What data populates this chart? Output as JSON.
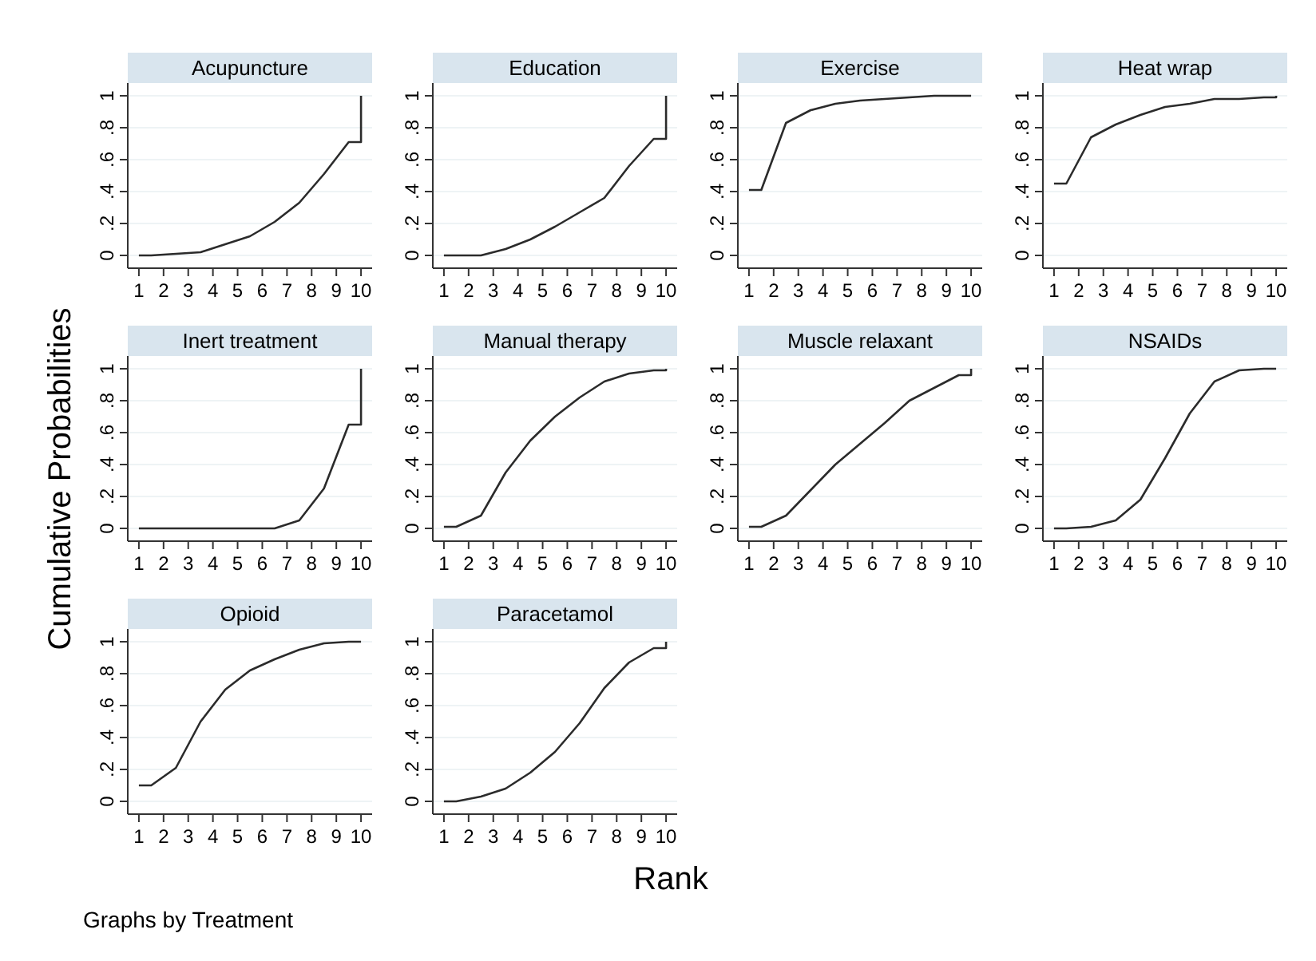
{
  "chart_data": [
    {
      "type": "line",
      "title": "Acupuncture",
      "x": [
        1,
        1.5,
        2.5,
        3.5,
        4.5,
        5.5,
        6.5,
        7.5,
        8.5,
        9.5,
        10,
        10
      ],
      "values": [
        0,
        0,
        0.01,
        0.02,
        0.07,
        0.12,
        0.21,
        0.33,
        0.51,
        0.71,
        0.71,
        1
      ],
      "color": "#2b2b2b",
      "xlim": [
        0.55,
        10.45
      ],
      "xticks": [
        1,
        2,
        3,
        4,
        5,
        6,
        7,
        8,
        9,
        10
      ],
      "ylim": [
        -0.08,
        1.08
      ],
      "yticks": [
        {
          "value": 0,
          "label": "0"
        },
        {
          "value": 0.2,
          "label": ".2"
        },
        {
          "value": 0.4,
          "label": ".4"
        },
        {
          "value": 0.6,
          "label": ".6"
        },
        {
          "value": 0.8,
          "label": ".8"
        },
        {
          "value": 1,
          "label": "1"
        }
      ],
      "grid": "y"
    },
    {
      "type": "line",
      "title": "Education",
      "x": [
        1,
        1.5,
        2.5,
        3.5,
        4.5,
        5.5,
        6.5,
        7.5,
        8.5,
        9.5,
        10,
        10
      ],
      "values": [
        0,
        0,
        0,
        0.04,
        0.1,
        0.18,
        0.27,
        0.36,
        0.56,
        0.73,
        0.73,
        1
      ],
      "color": "#2b2b2b",
      "xlim": [
        0.55,
        10.45
      ],
      "xticks": [
        1,
        2,
        3,
        4,
        5,
        6,
        7,
        8,
        9,
        10
      ],
      "ylim": [
        -0.08,
        1.08
      ],
      "yticks": [
        {
          "value": 0,
          "label": "0"
        },
        {
          "value": 0.2,
          "label": ".2"
        },
        {
          "value": 0.4,
          "label": ".4"
        },
        {
          "value": 0.6,
          "label": ".6"
        },
        {
          "value": 0.8,
          "label": ".8"
        },
        {
          "value": 1,
          "label": "1"
        }
      ],
      "grid": "y"
    },
    {
      "type": "line",
      "title": "Exercise",
      "x": [
        1,
        1.5,
        2.5,
        3.5,
        4.5,
        5.5,
        6.5,
        7.5,
        8.5,
        9.5,
        10,
        10
      ],
      "values": [
        0.41,
        0.41,
        0.83,
        0.91,
        0.95,
        0.97,
        0.98,
        0.99,
        1,
        1,
        1,
        1
      ],
      "color": "#2b2b2b",
      "xlim": [
        0.55,
        10.45
      ],
      "xticks": [
        1,
        2,
        3,
        4,
        5,
        6,
        7,
        8,
        9,
        10
      ],
      "ylim": [
        -0.08,
        1.08
      ],
      "yticks": [
        {
          "value": 0,
          "label": "0"
        },
        {
          "value": 0.2,
          "label": ".2"
        },
        {
          "value": 0.4,
          "label": ".4"
        },
        {
          "value": 0.6,
          "label": ".6"
        },
        {
          "value": 0.8,
          "label": ".8"
        },
        {
          "value": 1,
          "label": "1"
        }
      ],
      "grid": "y"
    },
    {
      "type": "line",
      "title": "Heat wrap",
      "x": [
        1,
        1.5,
        2.5,
        3.5,
        4.5,
        5.5,
        6.5,
        7.5,
        8.5,
        9.5,
        10,
        10
      ],
      "values": [
        0.45,
        0.45,
        0.74,
        0.82,
        0.88,
        0.93,
        0.95,
        0.98,
        0.98,
        0.99,
        0.99,
        1
      ],
      "color": "#2b2b2b",
      "xlim": [
        0.55,
        10.45
      ],
      "xticks": [
        1,
        2,
        3,
        4,
        5,
        6,
        7,
        8,
        9,
        10
      ],
      "ylim": [
        -0.08,
        1.08
      ],
      "yticks": [
        {
          "value": 0,
          "label": "0"
        },
        {
          "value": 0.2,
          "label": ".2"
        },
        {
          "value": 0.4,
          "label": ".4"
        },
        {
          "value": 0.6,
          "label": ".6"
        },
        {
          "value": 0.8,
          "label": ".8"
        },
        {
          "value": 1,
          "label": "1"
        }
      ],
      "grid": "y"
    },
    {
      "type": "line",
      "title": "Inert treatment",
      "ylabel": "Cumulative Probabilities",
      "x": [
        1,
        1.5,
        2.5,
        3.5,
        4.5,
        5.5,
        6.5,
        7.5,
        8.5,
        9.5,
        10,
        10
      ],
      "values": [
        0,
        0,
        0,
        0,
        0,
        0,
        0,
        0.05,
        0.25,
        0.65,
        0.65,
        1
      ],
      "color": "#2b2b2b",
      "xlim": [
        0.55,
        10.45
      ],
      "xticks": [
        1,
        2,
        3,
        4,
        5,
        6,
        7,
        8,
        9,
        10
      ],
      "ylim": [
        -0.08,
        1.08
      ],
      "yticks": [
        {
          "value": 0,
          "label": "0"
        },
        {
          "value": 0.2,
          "label": ".2"
        },
        {
          "value": 0.4,
          "label": ".4"
        },
        {
          "value": 0.6,
          "label": ".6"
        },
        {
          "value": 0.8,
          "label": ".8"
        },
        {
          "value": 1,
          "label": "1"
        }
      ],
      "grid": "y"
    },
    {
      "type": "line",
      "title": "Manual therapy",
      "x": [
        1,
        1.5,
        2.5,
        3.5,
        4.5,
        5.5,
        6.5,
        7.5,
        8.5,
        9.5,
        10,
        10
      ],
      "values": [
        0.01,
        0.01,
        0.08,
        0.35,
        0.55,
        0.7,
        0.82,
        0.92,
        0.97,
        0.99,
        0.99,
        1
      ],
      "color": "#2b2b2b",
      "xlim": [
        0.55,
        10.45
      ],
      "xticks": [
        1,
        2,
        3,
        4,
        5,
        6,
        7,
        8,
        9,
        10
      ],
      "ylim": [
        -0.08,
        1.08
      ],
      "yticks": [
        {
          "value": 0,
          "label": "0"
        },
        {
          "value": 0.2,
          "label": ".2"
        },
        {
          "value": 0.4,
          "label": ".4"
        },
        {
          "value": 0.6,
          "label": ".6"
        },
        {
          "value": 0.8,
          "label": ".8"
        },
        {
          "value": 1,
          "label": "1"
        }
      ],
      "grid": "y"
    },
    {
      "type": "line",
      "title": "Muscle relaxant",
      "x": [
        1,
        1.5,
        2.5,
        3.5,
        4.5,
        5.5,
        6.5,
        7.5,
        8.5,
        9.5,
        10,
        10
      ],
      "values": [
        0.01,
        0.01,
        0.08,
        0.24,
        0.4,
        0.53,
        0.66,
        0.8,
        0.88,
        0.96,
        0.96,
        1
      ],
      "color": "#2b2b2b",
      "xlim": [
        0.55,
        10.45
      ],
      "xticks": [
        1,
        2,
        3,
        4,
        5,
        6,
        7,
        8,
        9,
        10
      ],
      "ylim": [
        -0.08,
        1.08
      ],
      "yticks": [
        {
          "value": 0,
          "label": "0"
        },
        {
          "value": 0.2,
          "label": ".2"
        },
        {
          "value": 0.4,
          "label": ".4"
        },
        {
          "value": 0.6,
          "label": ".6"
        },
        {
          "value": 0.8,
          "label": ".8"
        },
        {
          "value": 1,
          "label": "1"
        }
      ],
      "grid": "y"
    },
    {
      "type": "line",
      "title": "NSAIDs",
      "x": [
        1,
        1.5,
        2.5,
        3.5,
        4.5,
        5.5,
        6.5,
        7.5,
        8.5,
        9.5,
        10,
        10
      ],
      "values": [
        0,
        0,
        0.01,
        0.05,
        0.18,
        0.44,
        0.72,
        0.92,
        0.99,
        1,
        1,
        1
      ],
      "color": "#2b2b2b",
      "xlim": [
        0.55,
        10.45
      ],
      "xticks": [
        1,
        2,
        3,
        4,
        5,
        6,
        7,
        8,
        9,
        10
      ],
      "ylim": [
        -0.08,
        1.08
      ],
      "yticks": [
        {
          "value": 0,
          "label": "0"
        },
        {
          "value": 0.2,
          "label": ".2"
        },
        {
          "value": 0.4,
          "label": ".4"
        },
        {
          "value": 0.6,
          "label": ".6"
        },
        {
          "value": 0.8,
          "label": ".8"
        },
        {
          "value": 1,
          "label": "1"
        }
      ],
      "grid": "y"
    },
    {
      "type": "line",
      "title": "Opioid",
      "x": [
        1,
        1.5,
        2.5,
        3.5,
        4.5,
        5.5,
        6.5,
        7.5,
        8.5,
        9.5,
        10,
        10
      ],
      "values": [
        0.1,
        0.1,
        0.21,
        0.5,
        0.7,
        0.82,
        0.89,
        0.95,
        0.99,
        1,
        1,
        1
      ],
      "color": "#2b2b2b",
      "xlim": [
        0.55,
        10.45
      ],
      "xticks": [
        1,
        2,
        3,
        4,
        5,
        6,
        7,
        8,
        9,
        10
      ],
      "ylim": [
        -0.08,
        1.08
      ],
      "yticks": [
        {
          "value": 0,
          "label": "0"
        },
        {
          "value": 0.2,
          "label": ".2"
        },
        {
          "value": 0.4,
          "label": ".4"
        },
        {
          "value": 0.6,
          "label": ".6"
        },
        {
          "value": 0.8,
          "label": ".8"
        },
        {
          "value": 1,
          "label": "1"
        }
      ],
      "grid": "y",
      "annotations": [
        "Graphs by Treatment"
      ]
    },
    {
      "type": "line",
      "title": "Paracetamol",
      "xlabel": "Rank",
      "x": [
        1,
        1.5,
        2.5,
        3.5,
        4.5,
        5.5,
        6.5,
        7.5,
        8.5,
        9.5,
        10,
        10
      ],
      "values": [
        0,
        0,
        0.03,
        0.08,
        0.18,
        0.31,
        0.49,
        0.71,
        0.87,
        0.96,
        0.96,
        1
      ],
      "color": "#2b2b2b",
      "xlim": [
        0.55,
        10.45
      ],
      "xticks": [
        1,
        2,
        3,
        4,
        5,
        6,
        7,
        8,
        9,
        10
      ],
      "ylim": [
        -0.08,
        1.08
      ],
      "yticks": [
        {
          "value": 0,
          "label": "0"
        },
        {
          "value": 0.2,
          "label": ".2"
        },
        {
          "value": 0.4,
          "label": ".4"
        },
        {
          "value": 0.6,
          "label": ".6"
        },
        {
          "value": 0.8,
          "label": ".8"
        },
        {
          "value": 1,
          "label": "1"
        }
      ],
      "grid": "y"
    }
  ]
}
